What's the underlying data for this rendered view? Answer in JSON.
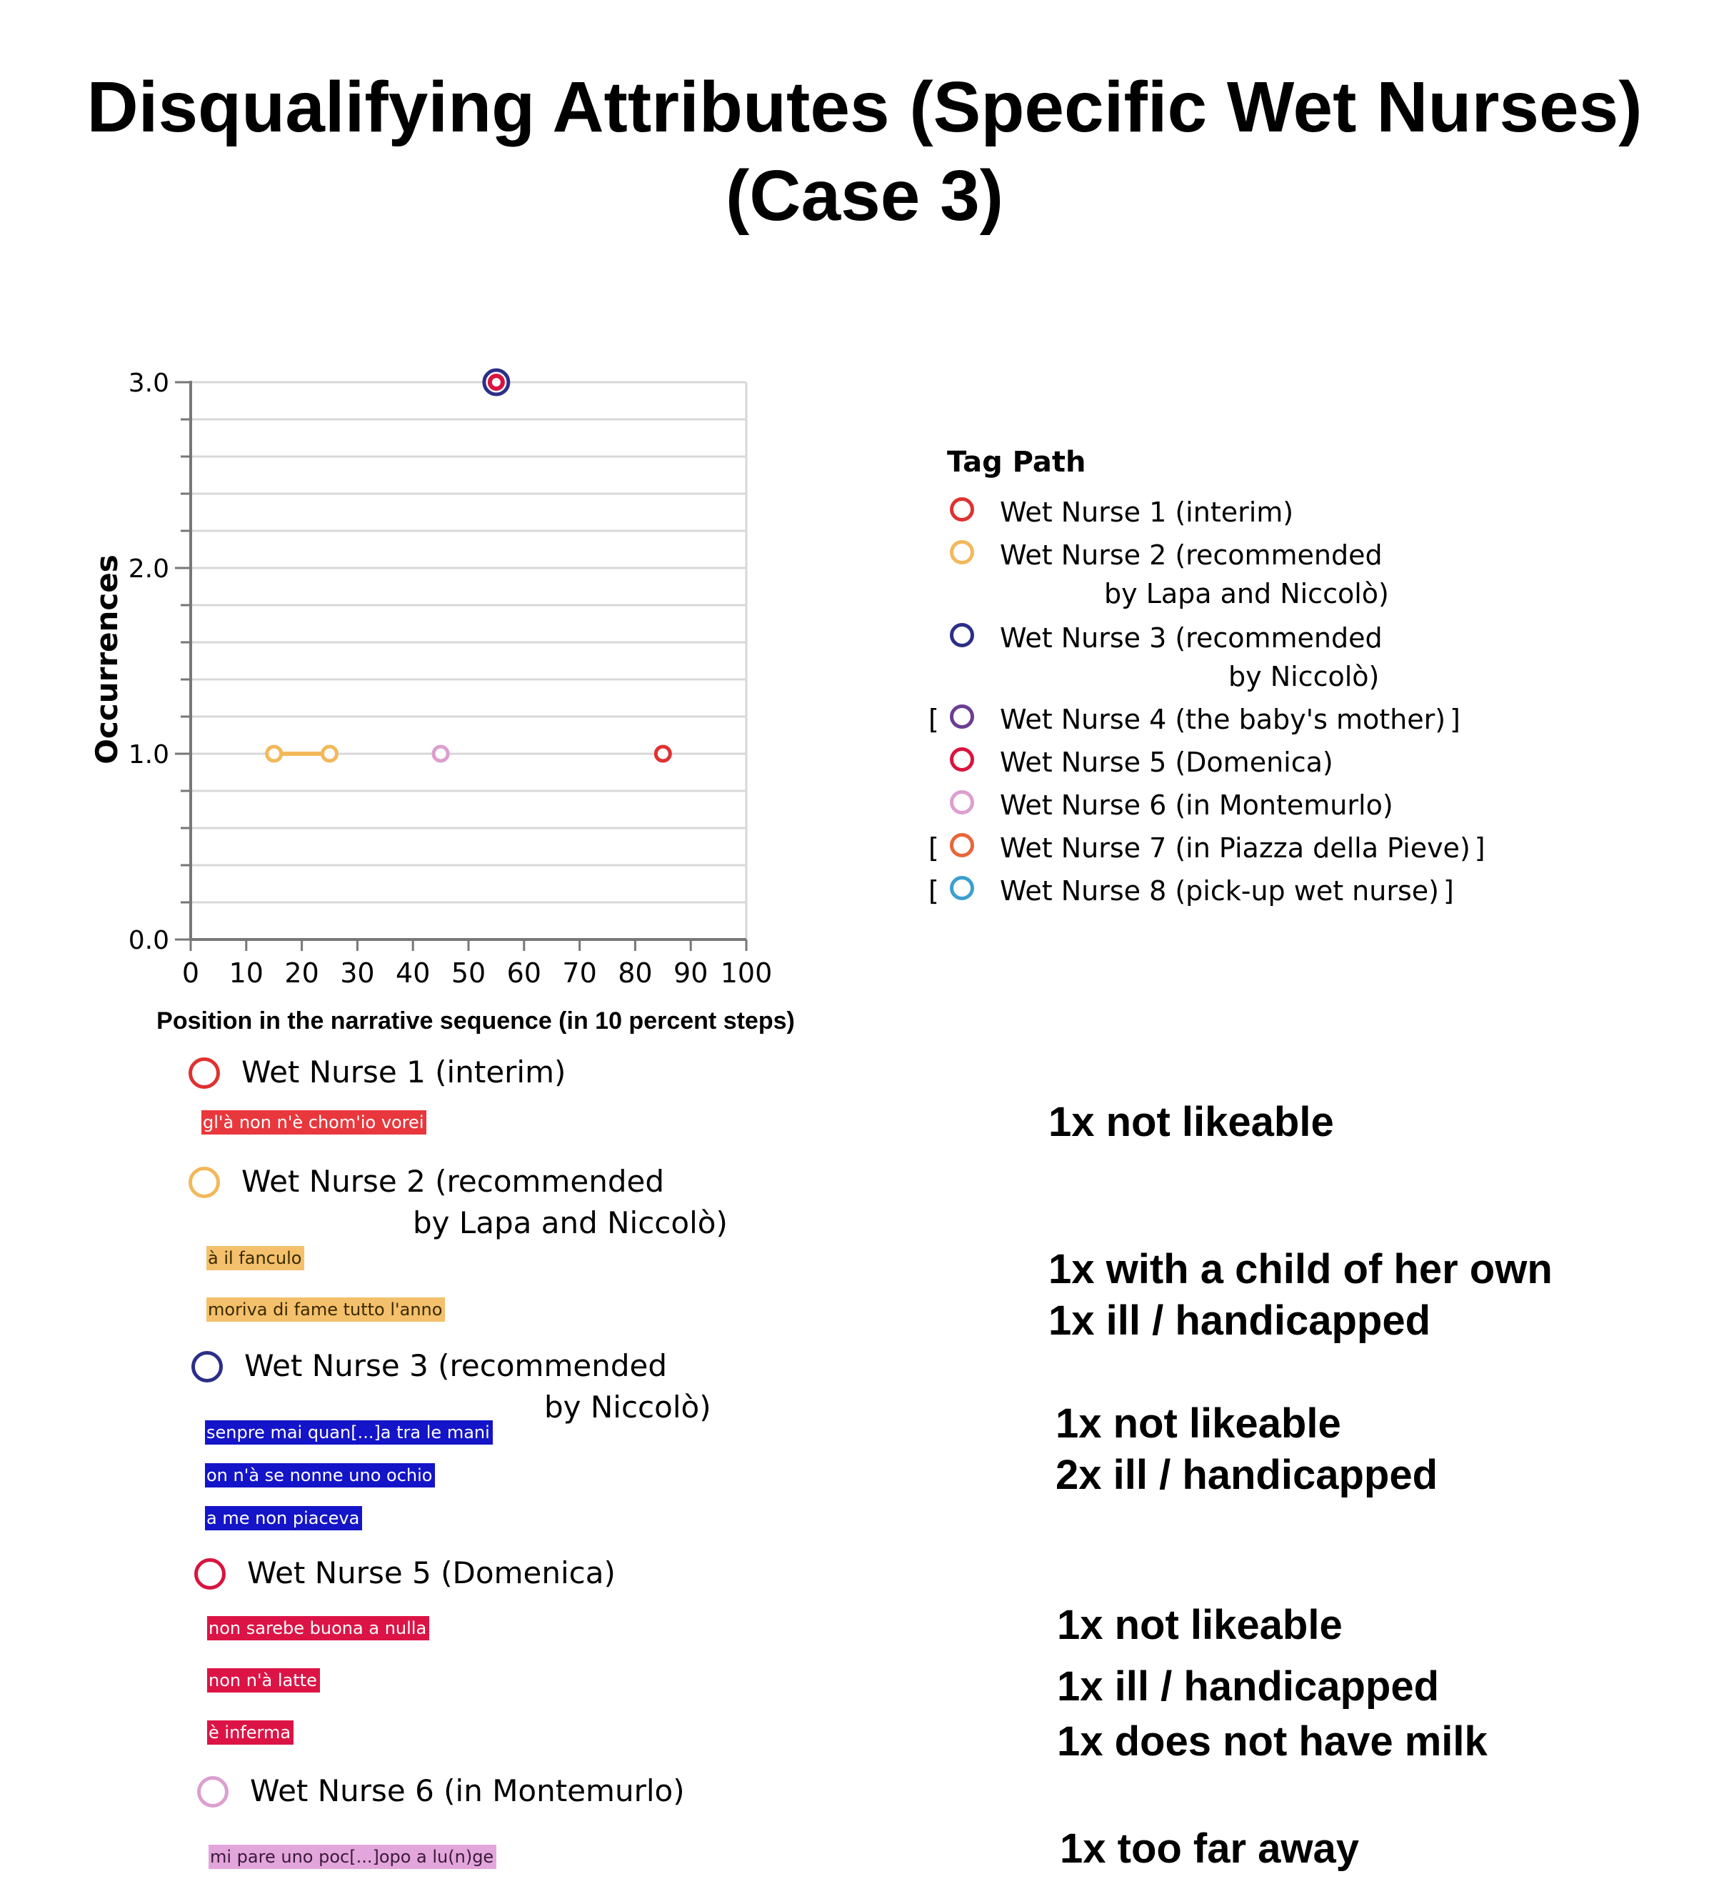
{
  "title": {
    "line1": "Disqualifying Attributes (Specific Wet Nurses)",
    "line2": "(Case 3)"
  },
  "chart_data": {
    "type": "scatter",
    "title": "Disqualifying Attributes (Specific Wet Nurses) (Case 3)",
    "xlabel": "Position in the narrative sequence (in 10 percent steps)",
    "ylabel": "Occurrences",
    "xlim": [
      0,
      100
    ],
    "ylim": [
      0,
      3
    ],
    "x_ticks": [
      "0",
      "10",
      "20",
      "30",
      "40",
      "50",
      "60",
      "70",
      "80",
      "90",
      "100"
    ],
    "y_ticks": [
      "0.0",
      "1.0",
      "2.0",
      "3.0"
    ],
    "grid": true,
    "legend_title": "Tag Path",
    "legend_placement": "right",
    "series": [
      {
        "name": "Wet Nurse 1 (interim)",
        "color": "#e03131",
        "points": [
          {
            "x": 85,
            "y": 1
          }
        ],
        "connected": false
      },
      {
        "name": "Wet Nurse 2 (recommended by Lapa and Niccolò)",
        "color": "#f2b85a",
        "points": [
          {
            "x": 15,
            "y": 1
          },
          {
            "x": 25,
            "y": 1
          }
        ],
        "connected": true
      },
      {
        "name": "Wet Nurse 3 (recommended by Niccolò)",
        "color": "#2b2f87",
        "points": [
          {
            "x": 55,
            "y": 3
          }
        ],
        "connected": false
      },
      {
        "name": "Wet Nurse 4 (the baby's mother)",
        "color": "#6b3e93",
        "points": [],
        "connected": false
      },
      {
        "name": "Wet Nurse 5 (Domenica)",
        "color": "#d9143f",
        "points": [
          {
            "x": 55,
            "y": 3
          }
        ],
        "connected": false
      },
      {
        "name": "Wet Nurse 6 (in Montemurlo)",
        "color": "#dc9fcf",
        "points": [
          {
            "x": 45,
            "y": 1
          }
        ],
        "connected": false
      },
      {
        "name": "Wet Nurse 7 (in Piazza della Pieve)",
        "color": "#e8663b",
        "points": [],
        "connected": false
      },
      {
        "name": "Wet Nurse 8 (pick-up wet nurse)",
        "color": "#3c9fcf",
        "points": [],
        "connected": false
      }
    ]
  },
  "legend": {
    "title": "Tag Path",
    "items": [
      {
        "line1": "Wet Nurse 1 (interim)",
        "line2": "",
        "bracket": false,
        "color": "#e03131"
      },
      {
        "line1": "Wet Nurse 2 (recommended",
        "line2": "by Lapa and Niccolò)",
        "bracket": false,
        "color": "#f2b85a"
      },
      {
        "line1": "Wet Nurse 3 (recommended",
        "line2": "by Niccolò)",
        "bracket": false,
        "color": "#2b2f87"
      },
      {
        "line1": "Wet Nurse 4 (the baby's mother)",
        "line2": "",
        "bracket": true,
        "color": "#6b3e93"
      },
      {
        "line1": "Wet Nurse 5 (Domenica)",
        "line2": "",
        "bracket": false,
        "color": "#d9143f"
      },
      {
        "line1": "Wet Nurse 6 (in Montemurlo)",
        "line2": "",
        "bracket": false,
        "color": "#dc9fcf"
      },
      {
        "line1": "Wet Nurse 7 (in Piazza della Pieve)",
        "line2": "",
        "bracket": true,
        "color": "#e8663b"
      },
      {
        "line1": "Wet Nurse 8 (pick-up wet nurse)",
        "line2": "",
        "bracket": true,
        "color": "#3c9fcf"
      }
    ],
    "bracket_open": "[",
    "bracket_close": "]"
  },
  "groups": [
    {
      "line1": "Wet Nurse 1 (interim)",
      "line2": "",
      "color": "#e03131",
      "quotes": [
        {
          "text": "gl'à non n'è chom'io vorei",
          "bg": "#e8383d",
          "fg": "#ffffff"
        }
      ],
      "summary": [
        "1x not likeable"
      ]
    },
    {
      "line1": "Wet Nurse 2 (recommended",
      "line2": "by Lapa and Niccolò)",
      "color": "#f2b85a",
      "quotes": [
        {
          "text": "à il fanculo",
          "bg": "#f4c06b",
          "fg": "#3a2a00"
        },
        {
          "text": "moriva di fame tutto l'anno",
          "bg": "#f4c06b",
          "fg": "#3a2a00"
        }
      ],
      "summary": [
        "1x with a child of her own",
        "1x ill / handicapped"
      ]
    },
    {
      "line1": "Wet Nurse 3 (recommended",
      "line2": "by Niccolò)",
      "color": "#2b2f87",
      "quotes": [
        {
          "text": "senpre mai quan[...]a tra le mani",
          "bg": "#1414c8",
          "fg": "#ffffff"
        },
        {
          "text": "on n'à se nonne uno ochio",
          "bg": "#1414c8",
          "fg": "#ffffff"
        },
        {
          "text": "a me non piaceva",
          "bg": "#1414c8",
          "fg": "#ffffff"
        }
      ],
      "summary": [
        "1x not likeable",
        "2x ill / handicapped"
      ]
    },
    {
      "line1": "Wet Nurse 5 (Domenica)",
      "line2": "",
      "color": "#d9143f",
      "quotes": [
        {
          "text": "non sarebe buona a nulla",
          "bg": "#dc1446",
          "fg": "#ffffff"
        },
        {
          "text": "non n'à latte",
          "bg": "#dc1446",
          "fg": "#ffffff"
        },
        {
          "text": "è inferma",
          "bg": "#dc1446",
          "fg": "#ffffff"
        }
      ],
      "summary": [
        "1x not likeable",
        "1x ill / handicapped",
        "1x does not have milk"
      ]
    },
    {
      "line1": "Wet Nurse 6 (in Montemurlo)",
      "line2": "",
      "color": "#dc9fcf",
      "quotes": [
        {
          "text": "mi pare uno poc[...]opo a lu(n)ge",
          "bg": "#e3a6dc",
          "fg": "#3a1a38"
        }
      ],
      "summary": [
        "1x too far away"
      ]
    }
  ]
}
